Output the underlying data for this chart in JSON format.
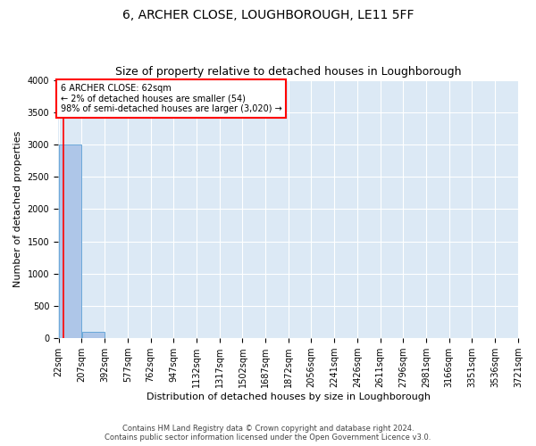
{
  "title": "6, ARCHER CLOSE, LOUGHBOROUGH, LE11 5FF",
  "subtitle": "Size of property relative to detached houses in Loughborough",
  "xlabel": "Distribution of detached houses by size in Loughborough",
  "ylabel": "Number of detached properties",
  "bar_edges": [
    22,
    207,
    392,
    577,
    762,
    947,
    1132,
    1317,
    1502,
    1687,
    1872,
    2056,
    2241,
    2426,
    2611,
    2796,
    2981,
    3166,
    3351,
    3536,
    3721
  ],
  "bar_labels": [
    "22sqm",
    "207sqm",
    "392sqm",
    "577sqm",
    "762sqm",
    "947sqm",
    "1132sqm",
    "1317sqm",
    "1502sqm",
    "1687sqm",
    "1872sqm",
    "2056sqm",
    "2241sqm",
    "2426sqm",
    "2611sqm",
    "2796sqm",
    "2981sqm",
    "3166sqm",
    "3351sqm",
    "3536sqm",
    "3721sqm"
  ],
  "bar_heights": [
    3000,
    100,
    0,
    0,
    0,
    0,
    0,
    0,
    0,
    0,
    0,
    0,
    0,
    0,
    0,
    0,
    0,
    0,
    0,
    0
  ],
  "bar_color": "#aec6e8",
  "bar_edge_color": "#5a9fd4",
  "property_size": 62,
  "annotation_line1": "6 ARCHER CLOSE: 62sqm",
  "annotation_line2": "← 2% of detached houses are smaller (54)",
  "annotation_line3": "98% of semi-detached houses are larger (3,020) →",
  "ylim": [
    0,
    4000
  ],
  "yticks": [
    0,
    500,
    1000,
    1500,
    2000,
    2500,
    3000,
    3500,
    4000
  ],
  "background_color": "#dce9f5",
  "footer_line1": "Contains HM Land Registry data © Crown copyright and database right 2024.",
  "footer_line2": "Contains public sector information licensed under the Open Government Licence v3.0.",
  "title_fontsize": 10,
  "subtitle_fontsize": 9,
  "axis_label_fontsize": 8,
  "tick_fontsize": 7,
  "grid_color": "#ffffff"
}
